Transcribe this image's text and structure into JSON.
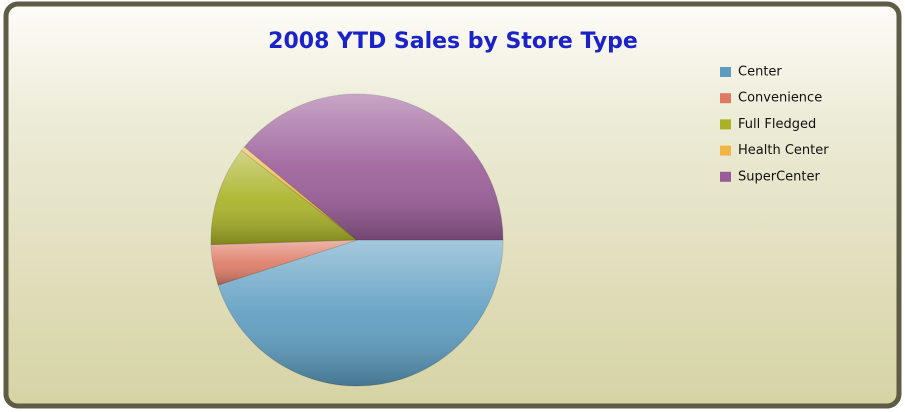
{
  "chart_data": {
    "type": "pie",
    "title": "2008 YTD Sales by Store Type",
    "categories": [
      "Center",
      "Convenience",
      "Full Fledged",
      "Health Center",
      "SuperCenter"
    ],
    "values": [
      45,
      4.5,
      11,
      0.5,
      39
    ],
    "colors": [
      "#5b9cc0",
      "#de7a64",
      "#a9b224",
      "#f2b442",
      "#9a5c98"
    ],
    "legend": "top-right"
  }
}
